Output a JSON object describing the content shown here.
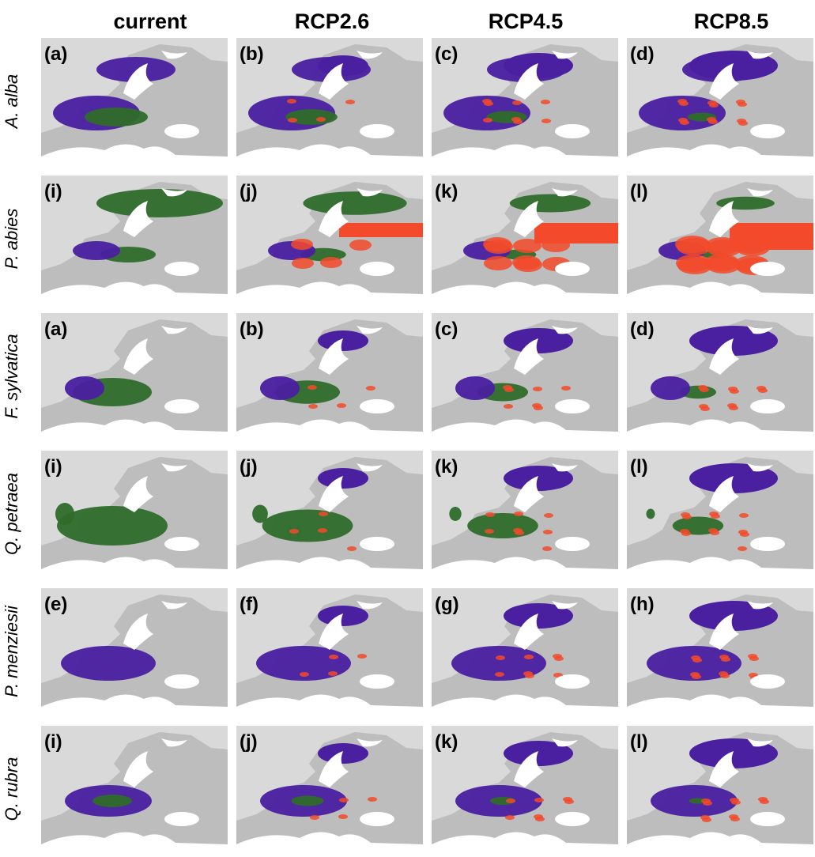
{
  "columns": [
    "current",
    "RCP2.6",
    "RCP4.5",
    "RCP8.5"
  ],
  "rows": [
    {
      "species": "A. alba",
      "panels": [
        "(a)",
        "(b)",
        "(c)",
        "(d)"
      ]
    },
    {
      "species": "P. abies",
      "panels": [
        "(i)",
        "(j)",
        "(k)",
        "(l)"
      ]
    },
    {
      "species": "F. sylvatica",
      "panels": [
        "(a)",
        "(b)",
        "(c)",
        "(d)"
      ]
    },
    {
      "species": "Q. petraea",
      "panels": [
        "(i)",
        "(j)",
        "(k)",
        "(l)"
      ]
    },
    {
      "species": "P. menziesii",
      "panels": [
        "(e)",
        "(f)",
        "(g)",
        "(h)"
      ]
    },
    {
      "species": "Q. rubra",
      "panels": [
        "(i)",
        "(j)",
        "(k)",
        "(l)"
      ]
    }
  ]
}
